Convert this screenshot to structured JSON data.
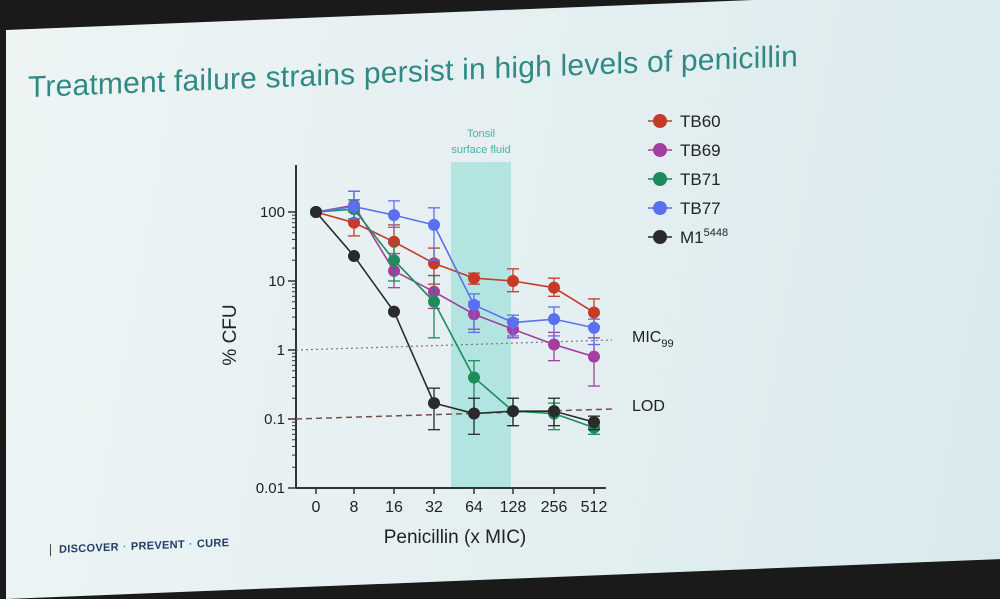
{
  "slide": {
    "title": "Treatment failure strains persist in high levels of penicillin",
    "footer": {
      "word1": "DISCOVER",
      "sep": "·",
      "word2": "PREVENT",
      "word3": "CURE"
    }
  },
  "colors": {
    "title": "#2f8a85",
    "band": "#a9e3de",
    "TB60": "#c63a2a",
    "TB69": "#a43ea0",
    "TB71": "#1c8c5a",
    "TB77": "#5b6ff0",
    "M1": "#2a2a2a"
  },
  "chart_data": {
    "type": "line",
    "xlabel": "Penicillin (x MIC)",
    "ylabel": "% CFU",
    "y_scale": "log",
    "ylim": [
      0.01,
      100
    ],
    "y_ticks": [
      "0.01",
      "0.1",
      "1",
      "10",
      "100"
    ],
    "categories": [
      "0",
      "8",
      "16",
      "32",
      "64",
      "128",
      "256",
      "512"
    ],
    "band": {
      "label_line1": "Tonsil",
      "label_line2": "surface fluid",
      "from_category": "32",
      "to_category": "128"
    },
    "reference_lines": [
      {
        "label": "MIC",
        "label_sub": "99",
        "value": 1
      },
      {
        "label": "LOD",
        "value": 0.1
      }
    ],
    "series": [
      {
        "name": "TB60",
        "sup": "",
        "values": [
          100,
          70,
          37,
          18,
          11,
          10,
          8,
          3.5
        ],
        "err_low": [
          100,
          45,
          20,
          9,
          9,
          7,
          6,
          2.2
        ],
        "err_high": [
          100,
          100,
          65,
          30,
          13,
          15,
          11,
          5.5
        ]
      },
      {
        "name": "TB69",
        "sup": "",
        "values": [
          100,
          125,
          14,
          7,
          3.3,
          2,
          1.2,
          0.8
        ],
        "err_low": [
          100,
          80,
          8,
          4,
          2,
          1.5,
          0.7,
          0.3
        ],
        "err_high": [
          100,
          200,
          25,
          12,
          5,
          2.8,
          1.8,
          1.5
        ]
      },
      {
        "name": "TB71",
        "sup": "",
        "values": [
          100,
          110,
          20,
          5,
          0.4,
          0.13,
          0.12,
          0.075
        ],
        "err_low": [
          100,
          80,
          10,
          1.5,
          0.12,
          0.08,
          0.07,
          0.06
        ],
        "err_high": [
          100,
          150,
          35,
          12,
          0.7,
          0.2,
          0.17,
          0.09
        ]
      },
      {
        "name": "TB77",
        "sup": "",
        "values": [
          100,
          120,
          90,
          65,
          4.5,
          2.5,
          2.8,
          2.1
        ],
        "err_low": [
          100,
          80,
          60,
          20,
          1.8,
          1.6,
          1.6,
          1.2
        ],
        "err_high": [
          100,
          200,
          145,
          115,
          6.5,
          3.2,
          4.2,
          2.8
        ]
      },
      {
        "name": "M1",
        "sup": "5448",
        "values": [
          100,
          23,
          3.6,
          0.17,
          0.12,
          0.13,
          0.13,
          0.09
        ],
        "err_low": [
          100,
          23,
          3.6,
          0.07,
          0.06,
          0.08,
          0.08,
          0.07
        ],
        "err_high": [
          100,
          23,
          3.6,
          0.28,
          0.2,
          0.2,
          0.2,
          0.11
        ]
      }
    ]
  }
}
